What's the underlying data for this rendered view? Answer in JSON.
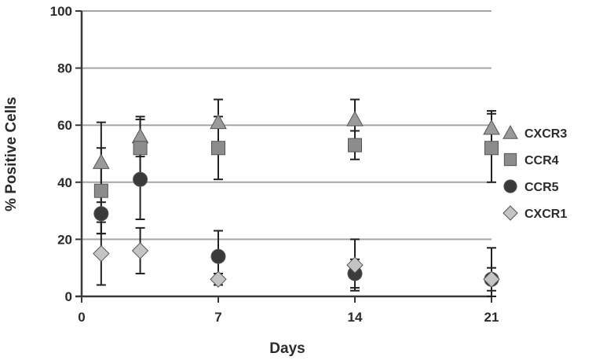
{
  "chart_data": {
    "type": "scatter",
    "xlabel": "Days",
    "ylabel": "% Positive Cells",
    "xlim": [
      0,
      21
    ],
    "ylim": [
      0,
      100
    ],
    "x_ticks": [
      0,
      7,
      14,
      21
    ],
    "y_ticks": [
      0,
      20,
      40,
      60,
      80,
      100
    ],
    "grid": "horizontal",
    "legend_position": "right",
    "series": [
      {
        "name": "CXCR3",
        "marker": "triangle",
        "color": "#9a9a9a",
        "x": [
          1,
          3,
          7,
          14,
          21
        ],
        "y": [
          47,
          56,
          61,
          62,
          59
        ],
        "err": [
          14,
          7,
          8,
          7,
          6
        ]
      },
      {
        "name": "CCR4",
        "marker": "square",
        "color": "#8c8c8c",
        "x": [
          1,
          3,
          7,
          14,
          21
        ],
        "y": [
          37,
          52,
          52,
          53,
          52
        ],
        "err": [
          15,
          10,
          11,
          5,
          12
        ]
      },
      {
        "name": "CCR5",
        "marker": "circle",
        "color": "#3a3a3a",
        "x": [
          1,
          3,
          7,
          14,
          21
        ],
        "y": [
          29,
          41,
          14,
          8,
          6
        ],
        "err": [
          7,
          14,
          9,
          5,
          4
        ]
      },
      {
        "name": "CXCR1",
        "marker": "diamond",
        "color": "#c4c4c4",
        "x": [
          1,
          3,
          7,
          14,
          21
        ],
        "y": [
          15,
          16,
          6,
          11,
          6
        ],
        "err": [
          11,
          8,
          2,
          9,
          11
        ]
      }
    ]
  }
}
